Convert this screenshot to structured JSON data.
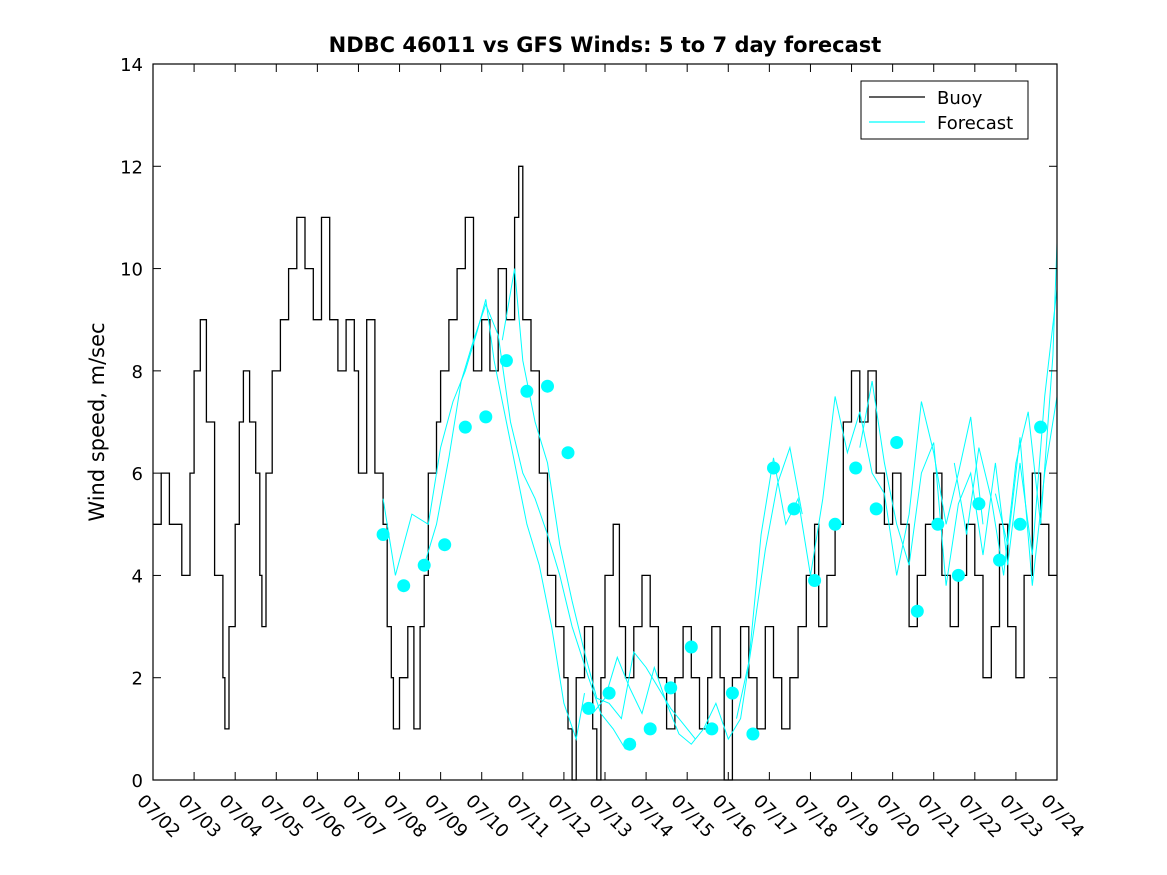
{
  "chart_data": {
    "type": "line",
    "title": "NDBC 46011 vs GFS Winds: 5 to 7 day forecast",
    "xlabel": "",
    "ylabel": "Wind speed, m/sec",
    "xlim": [
      "07/02",
      "07/24"
    ],
    "ylim": [
      0,
      14
    ],
    "yticks": [
      0,
      2,
      4,
      6,
      8,
      10,
      12,
      14
    ],
    "xticks": [
      "07/02",
      "07/03",
      "07/04",
      "07/05",
      "07/06",
      "07/07",
      "07/08",
      "07/09",
      "07/10",
      "07/11",
      "07/12",
      "07/13",
      "07/14",
      "07/15",
      "07/16",
      "07/17",
      "07/18",
      "07/19",
      "07/20",
      "07/21",
      "07/22",
      "07/23",
      "07/24"
    ],
    "grid": false,
    "legend": {
      "position": "top-right",
      "entries": [
        "Buoy",
        "Forecast"
      ]
    },
    "colors": {
      "buoy": "#000000",
      "forecast": "#00ffff",
      "markers": "#00ffff"
    },
    "series": [
      {
        "name": "Buoy",
        "style": "step",
        "x_unit": "days since 07/02",
        "points": [
          [
            0.0,
            5
          ],
          [
            0.2,
            6
          ],
          [
            0.4,
            5
          ],
          [
            0.7,
            4
          ],
          [
            0.9,
            6
          ],
          [
            1.0,
            8
          ],
          [
            1.15,
            9
          ],
          [
            1.3,
            7
          ],
          [
            1.5,
            4
          ],
          [
            1.7,
            2
          ],
          [
            1.75,
            1
          ],
          [
            1.85,
            3
          ],
          [
            2.0,
            5
          ],
          [
            2.1,
            7
          ],
          [
            2.2,
            8
          ],
          [
            2.35,
            7
          ],
          [
            2.5,
            6
          ],
          [
            2.6,
            4
          ],
          [
            2.65,
            3
          ],
          [
            2.75,
            6
          ],
          [
            2.9,
            8
          ],
          [
            3.1,
            9
          ],
          [
            3.3,
            10
          ],
          [
            3.5,
            11
          ],
          [
            3.7,
            10
          ],
          [
            3.9,
            9
          ],
          [
            4.1,
            11
          ],
          [
            4.3,
            9
          ],
          [
            4.5,
            8
          ],
          [
            4.7,
            9
          ],
          [
            4.9,
            8
          ],
          [
            5.0,
            6
          ],
          [
            5.2,
            9
          ],
          [
            5.4,
            6
          ],
          [
            5.6,
            5
          ],
          [
            5.7,
            3
          ],
          [
            5.8,
            2
          ],
          [
            5.85,
            1
          ],
          [
            6.0,
            2
          ],
          [
            6.2,
            3
          ],
          [
            6.35,
            1
          ],
          [
            6.5,
            3
          ],
          [
            6.6,
            4
          ],
          [
            6.7,
            6
          ],
          [
            6.9,
            7
          ],
          [
            7.0,
            8
          ],
          [
            7.2,
            9
          ],
          [
            7.4,
            10
          ],
          [
            7.6,
            11
          ],
          [
            7.8,
            8
          ],
          [
            8.0,
            9
          ],
          [
            8.2,
            8
          ],
          [
            8.4,
            10
          ],
          [
            8.6,
            9
          ],
          [
            8.8,
            11
          ],
          [
            8.9,
            12
          ],
          [
            9.0,
            9
          ],
          [
            9.2,
            8
          ],
          [
            9.4,
            6
          ],
          [
            9.6,
            4
          ],
          [
            9.8,
            3
          ],
          [
            10.0,
            2
          ],
          [
            10.1,
            1
          ],
          [
            10.2,
            0
          ],
          [
            10.3,
            2
          ],
          [
            10.5,
            3
          ],
          [
            10.7,
            1
          ],
          [
            10.8,
            0
          ],
          [
            10.9,
            2
          ],
          [
            11.0,
            4
          ],
          [
            11.2,
            5
          ],
          [
            11.35,
            3
          ],
          [
            11.5,
            2
          ],
          [
            11.7,
            3
          ],
          [
            11.9,
            4
          ],
          [
            12.1,
            3
          ],
          [
            12.3,
            2
          ],
          [
            12.5,
            1
          ],
          [
            12.7,
            2
          ],
          [
            12.9,
            3
          ],
          [
            13.1,
            2
          ],
          [
            13.3,
            1
          ],
          [
            13.5,
            2
          ],
          [
            13.6,
            3
          ],
          [
            13.8,
            2
          ],
          [
            13.9,
            0
          ],
          [
            14.1,
            2
          ],
          [
            14.3,
            3
          ],
          [
            14.5,
            2
          ],
          [
            14.7,
            1
          ],
          [
            14.9,
            3
          ],
          [
            15.1,
            2
          ],
          [
            15.3,
            1
          ],
          [
            15.5,
            2
          ],
          [
            15.7,
            3
          ],
          [
            15.9,
            4
          ],
          [
            16.1,
            5
          ],
          [
            16.2,
            3
          ],
          [
            16.4,
            4
          ],
          [
            16.6,
            5
          ],
          [
            16.8,
            7
          ],
          [
            17.0,
            8
          ],
          [
            17.2,
            7
          ],
          [
            17.4,
            8
          ],
          [
            17.6,
            6
          ],
          [
            17.8,
            5
          ],
          [
            18.0,
            6
          ],
          [
            18.2,
            5
          ],
          [
            18.4,
            3
          ],
          [
            18.6,
            4
          ],
          [
            18.8,
            5
          ],
          [
            19.0,
            6
          ],
          [
            19.2,
            4
          ],
          [
            19.4,
            3
          ],
          [
            19.6,
            4
          ],
          [
            19.8,
            5
          ],
          [
            20.0,
            4
          ],
          [
            20.2,
            2
          ],
          [
            20.4,
            3
          ],
          [
            20.6,
            5
          ],
          [
            20.8,
            3
          ],
          [
            21.0,
            2
          ],
          [
            21.2,
            4
          ],
          [
            21.4,
            6
          ],
          [
            21.6,
            5
          ],
          [
            21.8,
            4
          ]
        ]
      },
      {
        "name": "Forecast",
        "x_unit": "days since 07/02",
        "runs": [
          [
            [
              5.6,
              5.5
            ],
            [
              5.9,
              4.0
            ],
            [
              6.3,
              5.2
            ],
            [
              6.7,
              5.0
            ],
            [
              7.0,
              6.5
            ],
            [
              7.3,
              7.4
            ],
            [
              7.6,
              8.0
            ],
            [
              7.9,
              8.8
            ],
            [
              8.1,
              9.4
            ],
            [
              8.3,
              8.2
            ],
            [
              8.6,
              7.0
            ],
            [
              8.8,
              6.2
            ],
            [
              9.1,
              5.0
            ],
            [
              9.4,
              4.2
            ],
            [
              9.7,
              3.0
            ],
            [
              10.0,
              1.5
            ],
            [
              10.3,
              0.8
            ],
            [
              10.5,
              1.7
            ]
          ],
          [
            [
              6.6,
              4.2
            ],
            [
              6.9,
              5.0
            ],
            [
              7.2,
              6.3
            ],
            [
              7.5,
              7.8
            ],
            [
              7.8,
              8.6
            ],
            [
              8.1,
              9.3
            ],
            [
              8.4,
              8.7
            ],
            [
              8.7,
              7.0
            ],
            [
              9.0,
              6.0
            ],
            [
              9.3,
              5.5
            ],
            [
              9.6,
              4.8
            ],
            [
              9.9,
              4.0
            ],
            [
              10.2,
              3.0
            ],
            [
              10.6,
              2.0
            ],
            [
              10.9,
              1.3
            ],
            [
              11.2,
              1.0
            ],
            [
              11.5,
              0.6
            ]
          ],
          [
            [
              8.5,
              8.6
            ],
            [
              8.8,
              10.0
            ],
            [
              9.0,
              8.2
            ],
            [
              9.3,
              7.0
            ],
            [
              9.6,
              6.2
            ],
            [
              9.9,
              4.6
            ],
            [
              10.2,
              3.5
            ],
            [
              10.5,
              2.5
            ],
            [
              10.8,
              1.6
            ],
            [
              11.1,
              1.5
            ],
            [
              11.4,
              1.2
            ],
            [
              11.7,
              2.5
            ],
            [
              12.0,
              2.2
            ],
            [
              12.3,
              1.8
            ],
            [
              12.6,
              1.4
            ],
            [
              12.9,
              1.1
            ],
            [
              13.2,
              0.8
            ]
          ],
          [
            [
              10.7,
              1.3
            ],
            [
              11.0,
              1.6
            ],
            [
              11.3,
              2.4
            ],
            [
              11.6,
              1.8
            ],
            [
              11.9,
              1.3
            ],
            [
              12.2,
              2.2
            ],
            [
              12.5,
              1.5
            ],
            [
              12.8,
              0.9
            ],
            [
              13.1,
              0.7
            ],
            [
              13.4,
              1.0
            ],
            [
              13.7,
              1.5
            ],
            [
              14.0,
              0.8
            ],
            [
              14.3,
              1.2
            ],
            [
              14.6,
              2.8
            ],
            [
              14.9,
              4.5
            ],
            [
              15.2,
              5.8
            ],
            [
              15.5,
              6.5
            ],
            [
              15.8,
              5.2
            ]
          ],
          [
            [
              14.2,
              1.2
            ],
            [
              14.5,
              2.3
            ],
            [
              14.8,
              4.8
            ],
            [
              15.1,
              6.3
            ],
            [
              15.4,
              5.0
            ],
            [
              15.7,
              5.5
            ],
            [
              16.0,
              4.0
            ],
            [
              16.3,
              5.5
            ],
            [
              16.6,
              7.5
            ],
            [
              16.9,
              6.4
            ],
            [
              17.2,
              7.2
            ],
            [
              17.5,
              6.0
            ],
            [
              17.8,
              5.6
            ],
            [
              18.1,
              4.0
            ],
            [
              18.4,
              5.2
            ],
            [
              18.7,
              7.4
            ],
            [
              19.0,
              6.4
            ],
            [
              19.3,
              5.0
            ],
            [
              19.6,
              6.0
            ],
            [
              19.9,
              7.1
            ],
            [
              20.2,
              5.0
            ]
          ],
          [
            [
              17.2,
              6.5
            ],
            [
              17.5,
              7.8
            ],
            [
              17.8,
              6.2
            ],
            [
              18.1,
              5.0
            ],
            [
              18.4,
              4.2
            ],
            [
              18.7,
              6.0
            ],
            [
              19.0,
              6.6
            ],
            [
              19.3,
              3.8
            ],
            [
              19.6,
              5.4
            ],
            [
              19.9,
              6.0
            ],
            [
              20.2,
              4.4
            ],
            [
              20.5,
              6.2
            ],
            [
              20.8,
              4.2
            ],
            [
              21.1,
              6.2
            ],
            [
              21.4,
              4.4
            ],
            [
              21.7,
              7.5
            ],
            [
              22.0,
              9.6
            ]
          ],
          [
            [
              19.5,
              6.2
            ],
            [
              19.8,
              4.8
            ],
            [
              20.1,
              6.5
            ],
            [
              20.4,
              5.5
            ],
            [
              20.7,
              4.0
            ],
            [
              21.0,
              6.2
            ],
            [
              21.3,
              7.2
            ],
            [
              21.6,
              5.0
            ],
            [
              21.9,
              8.3
            ],
            [
              22.0,
              10.5
            ]
          ],
          [
            [
              20.5,
              5.6
            ],
            [
              20.8,
              4.6
            ],
            [
              21.1,
              6.7
            ],
            [
              21.4,
              3.8
            ],
            [
              21.7,
              6.0
            ],
            [
              22.0,
              7.5
            ]
          ]
        ]
      },
      {
        "name": "",
        "style": "markers",
        "x_unit": "days since 07/02",
        "points": [
          [
            5.6,
            4.8
          ],
          [
            6.1,
            3.8
          ],
          [
            6.6,
            4.2
          ],
          [
            7.1,
            4.6
          ],
          [
            7.6,
            6.9
          ],
          [
            8.1,
            7.1
          ],
          [
            8.6,
            8.2
          ],
          [
            9.1,
            7.6
          ],
          [
            9.6,
            7.7
          ],
          [
            10.1,
            6.4
          ],
          [
            10.6,
            1.4
          ],
          [
            11.1,
            1.7
          ],
          [
            11.6,
            0.7
          ],
          [
            12.1,
            1.0
          ],
          [
            12.6,
            1.8
          ],
          [
            13.1,
            2.6
          ],
          [
            13.6,
            1.0
          ],
          [
            14.1,
            1.7
          ],
          [
            14.6,
            0.9
          ],
          [
            15.1,
            6.1
          ],
          [
            15.6,
            5.3
          ],
          [
            16.1,
            3.9
          ],
          [
            16.6,
            5.0
          ],
          [
            17.1,
            6.1
          ],
          [
            17.6,
            5.3
          ],
          [
            18.1,
            6.6
          ],
          [
            18.6,
            3.3
          ],
          [
            19.1,
            5.0
          ],
          [
            19.6,
            4.0
          ],
          [
            20.1,
            5.4
          ],
          [
            20.6,
            4.3
          ],
          [
            21.1,
            5.0
          ],
          [
            21.6,
            6.9
          ]
        ]
      }
    ]
  }
}
